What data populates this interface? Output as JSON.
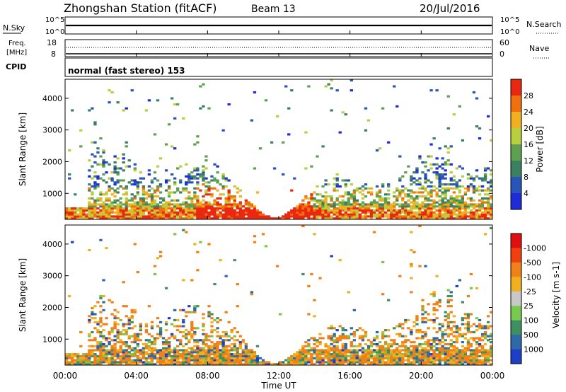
{
  "header": {
    "station": "Zhongshan Station (fitACF)",
    "beam": "Beam 13",
    "date": "20/Jul/2016"
  },
  "panels": {
    "nsky": {
      "label": "N.Sky",
      "ticks": [
        "10^5",
        "10^0"
      ],
      "right_label": "N.Search",
      "right_ticks": [
        "10^5",
        "10^0"
      ]
    },
    "freq": {
      "label_line1": "Freq.",
      "label_line2": "[MHz]",
      "ticks": [
        "18",
        "8"
      ],
      "right_label": "Nave",
      "right_ticks": [
        "60",
        "0"
      ]
    },
    "cpid": {
      "label": "CPID",
      "text": "normal (fast stereo) 153"
    }
  },
  "chart_data": [
    {
      "type": "heatmap",
      "title": "",
      "ylabel": "Slant Range [km]",
      "xlabel": "",
      "x_ticks": [
        "00:00",
        "04:00",
        "08:00",
        "12:00",
        "16:00",
        "20:00",
        "00:00"
      ],
      "y_ticks": [
        1000,
        2000,
        3000,
        4000
      ],
      "ylim": [
        180,
        4600
      ],
      "colorbar": {
        "label": "Power [dB]",
        "ticks": [
          "4",
          "8",
          "12",
          "16",
          "20",
          "24",
          "28"
        ],
        "colors": [
          "#1e2bd6",
          "#2a55b8",
          "#3b8060",
          "#5fa050",
          "#b8d040",
          "#f0b020",
          "#f07010",
          "#e82810"
        ]
      }
    },
    {
      "type": "heatmap",
      "title": "",
      "ylabel": "Slant Range [km]",
      "xlabel": "Time UT",
      "x_ticks": [
        "00:00",
        "04:00",
        "08:00",
        "12:00",
        "16:00",
        "20:00",
        "00:00"
      ],
      "y_ticks": [
        1000,
        2000,
        3000,
        4000
      ],
      "ylim": [
        180,
        4600
      ],
      "colorbar": {
        "label": "Velocity [m s-1]",
        "ticks": [
          "1000",
          "500",
          "100",
          "25",
          "-25",
          "-100",
          "-500",
          "-1000"
        ],
        "colors": [
          "#1e3fc8",
          "#2e6aa8",
          "#3f9060",
          "#78c850",
          "#c8c8c8",
          "#f0b020",
          "#f08018",
          "#f04010",
          "#e01010"
        ]
      }
    }
  ]
}
